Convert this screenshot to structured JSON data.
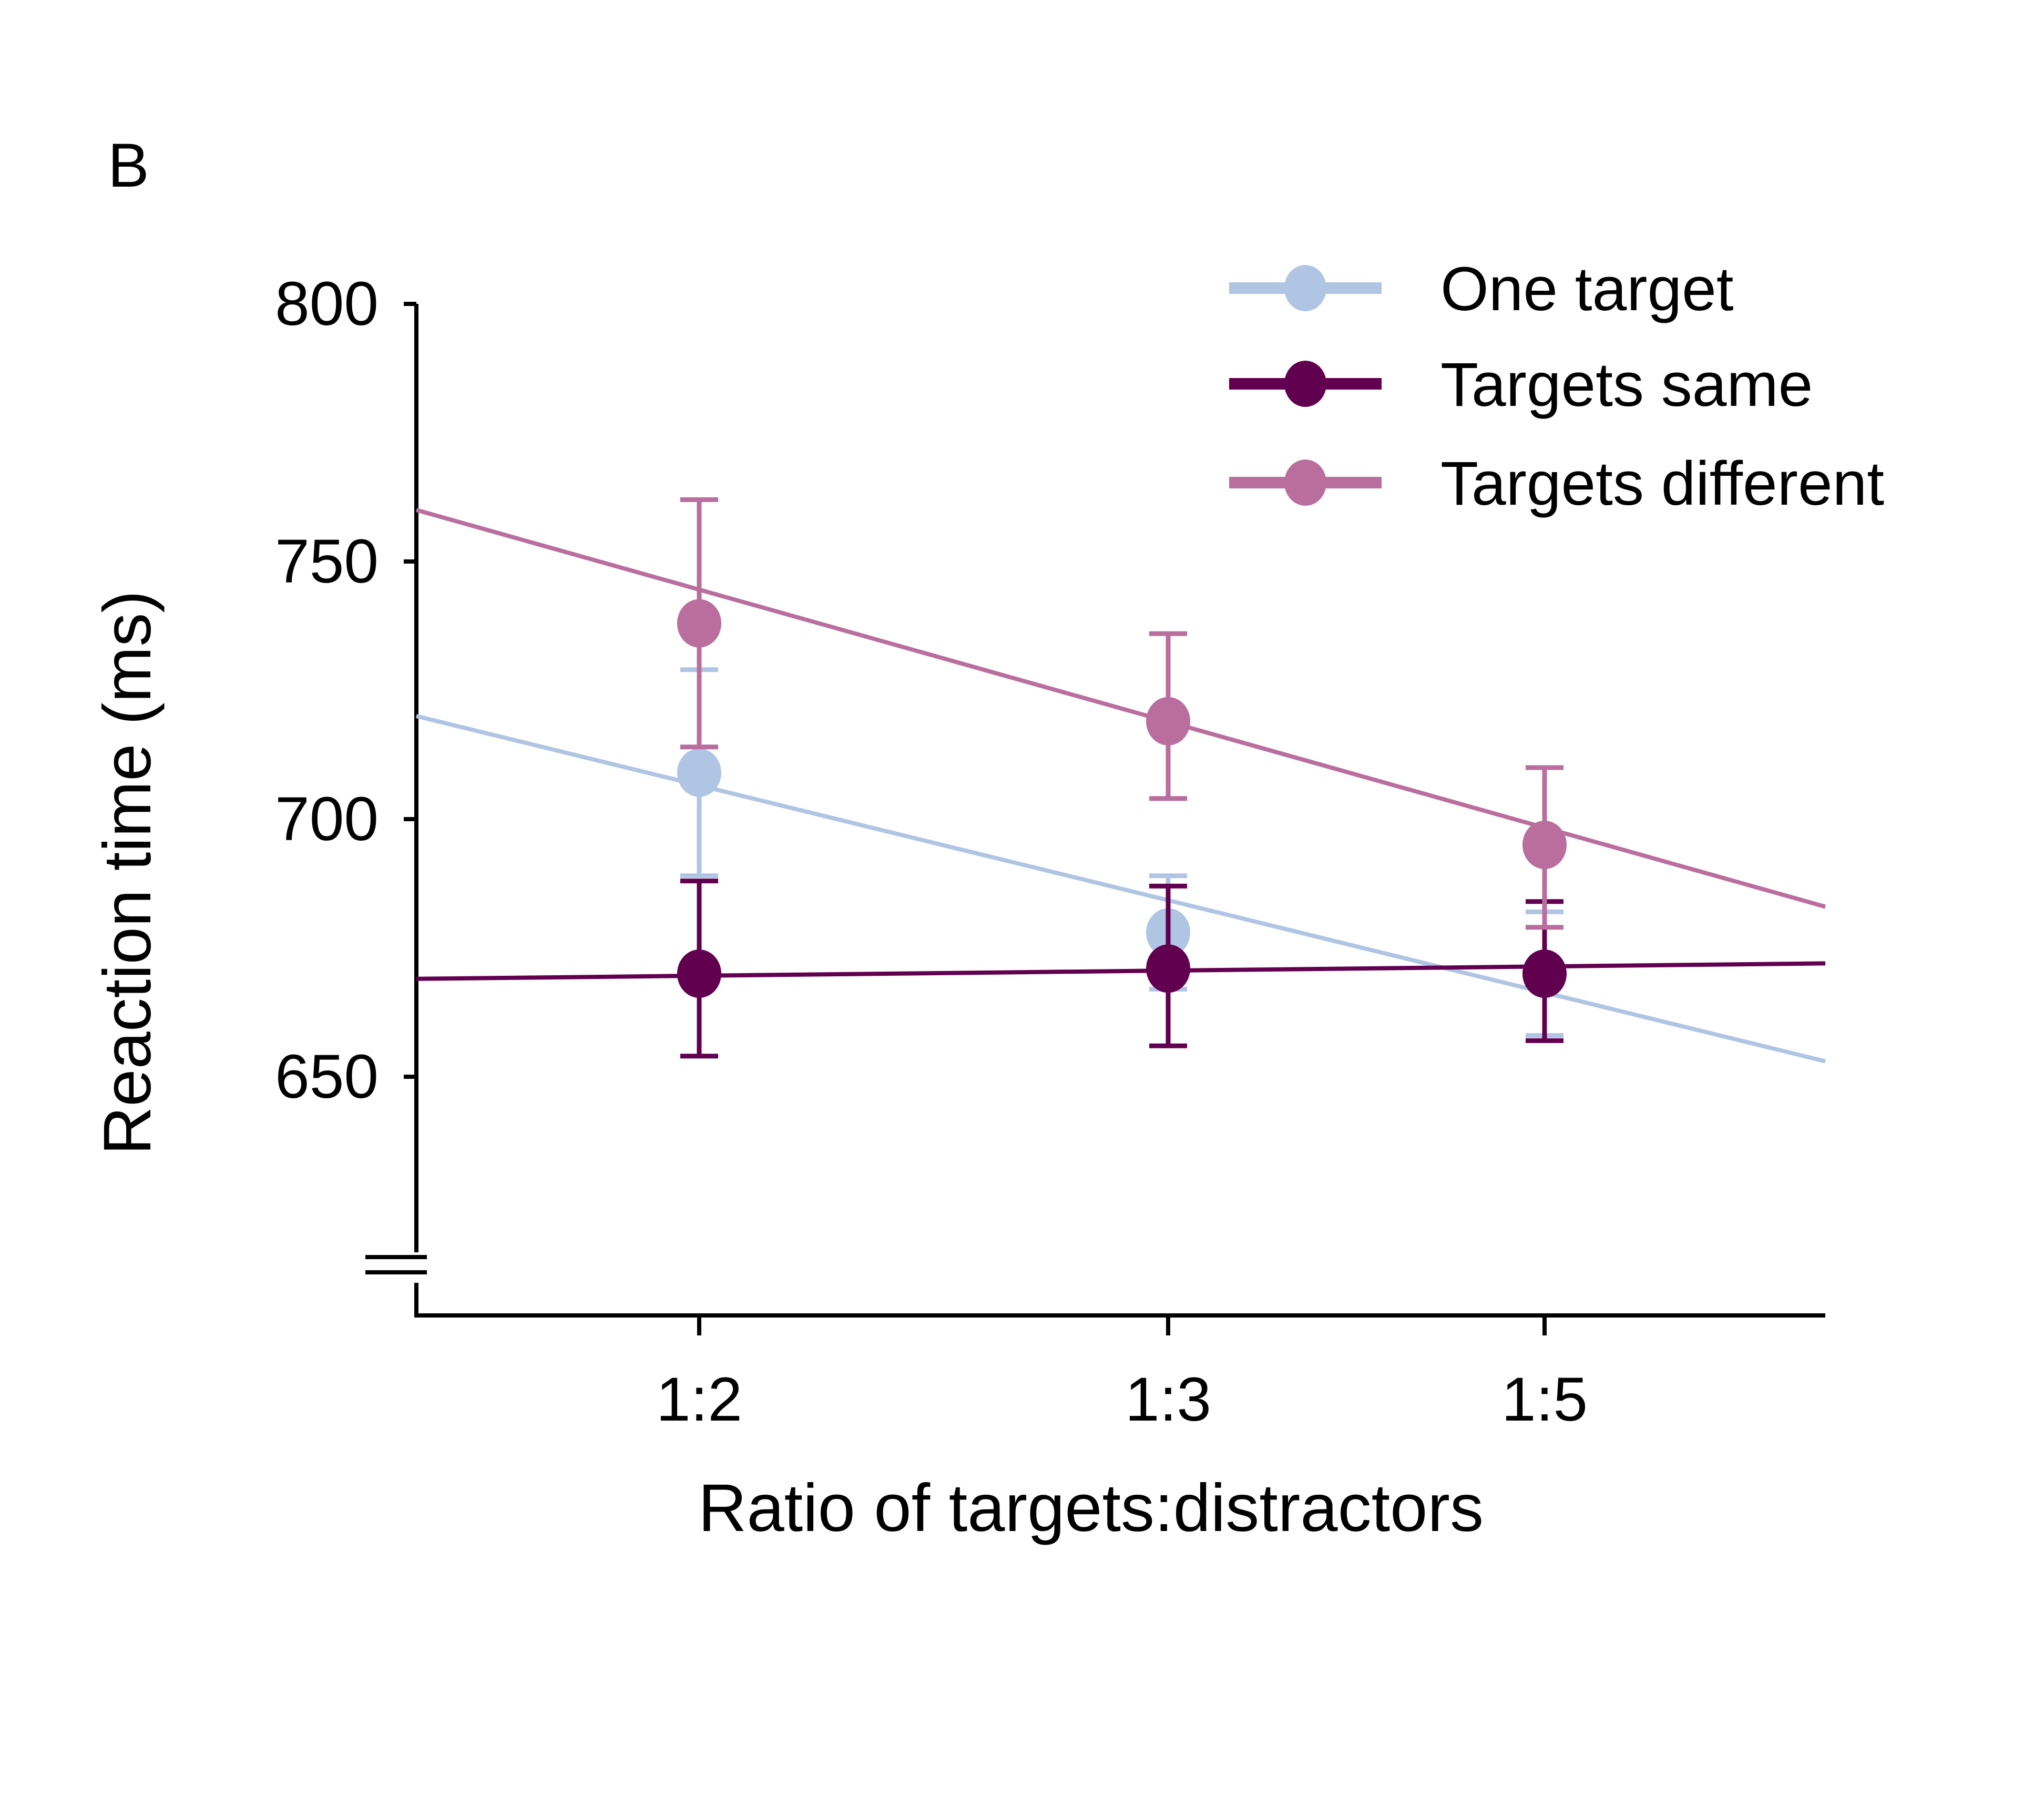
{
  "panel_label": "B",
  "chart_data": {
    "type": "line",
    "xlabel": "Ratio of targets:distractors",
    "ylabel": "Reaction time (ms)",
    "categories": [
      "1:2",
      "1:3",
      "1:5"
    ],
    "y_ticks": [
      650,
      700,
      750,
      800
    ],
    "ylim": [
      600,
      800
    ],
    "axis_break": true,
    "grid": false,
    "legend_position": "top-right",
    "series": [
      {
        "name": "One target",
        "color": "#b0c4e4",
        "values": [
          709,
          678,
          670
        ],
        "error": [
          [
            689,
            729
          ],
          [
            667,
            689
          ],
          [
            658,
            682
          ]
        ],
        "fit": [
          720,
          653
        ]
      },
      {
        "name": "Targets same",
        "color": "#620050",
        "values": [
          670,
          671,
          670
        ],
        "error": [
          [
            654,
            688
          ],
          [
            656,
            687
          ],
          [
            657,
            684
          ]
        ],
        "fit": [
          669,
          672
        ]
      },
      {
        "name": "Targets different",
        "color": "#b96e9d",
        "values": [
          738,
          719,
          695
        ],
        "error": [
          [
            714,
            762
          ],
          [
            704,
            736
          ],
          [
            679,
            710
          ]
        ],
        "fit": [
          760,
          683
        ]
      }
    ]
  }
}
